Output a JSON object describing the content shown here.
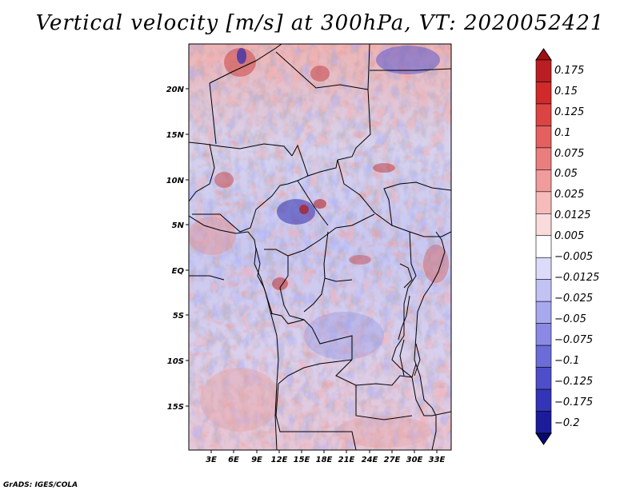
{
  "title": "Vertical velocity [m/s] at 300hPa, VT: 2020052421",
  "credit": "GrADS: IGES/COLA",
  "map": {
    "variable": "Vertical velocity",
    "units": "m/s",
    "level": "300hPa",
    "valid_time": "2020052421",
    "lat_labels": [
      "20N",
      "15N",
      "10N",
      "5N",
      "EQ",
      "5S",
      "10S",
      "15S"
    ],
    "lon_labels": [
      "3E",
      "6E",
      "9E",
      "12E",
      "15E",
      "18E",
      "21E",
      "24E",
      "27E",
      "30E",
      "33E"
    ]
  },
  "colorbar": {
    "levels": [
      "0.175",
      "0.15",
      "0.125",
      "0.1",
      "0.075",
      "0.05",
      "0.025",
      "0.0125",
      "0.005",
      "−0.005",
      "−0.0125",
      "−0.025",
      "−0.05",
      "−0.075",
      "−0.1",
      "−0.125",
      "−0.175",
      "−0.2"
    ],
    "colors": [
      "#a01015",
      "#bb1e22",
      "#d02a2a",
      "#dc4444",
      "#e46060",
      "#ea7e7e",
      "#f09c9c",
      "#f6bcbc",
      "#fadbdb",
      "#ffffff",
      "#dcdcfa",
      "#c2c2f4",
      "#a8a8ee",
      "#8a8ae4",
      "#6c6cd8",
      "#4e4ecb",
      "#3434b8",
      "#1c1c9a",
      "#080873"
    ]
  }
}
